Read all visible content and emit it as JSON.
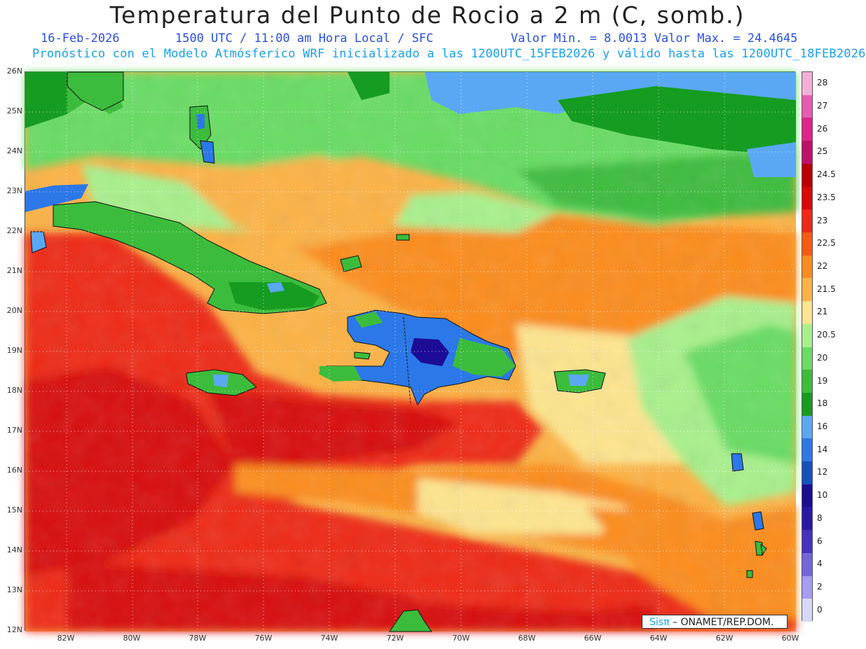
{
  "title": "Temperatura del Punto de Rocio a 2 m (C, somb.)",
  "subtitle": {
    "date": "16-Feb-2026",
    "time": "1500 UTC / 11:00 am Hora Local / SFC",
    "range": "Valor Min. = 8.0013  Valor Max. = 24.4645"
  },
  "description": "Pronóstico con el Modelo Atmósferico WRF inicializado a las 1200UTC_15FEB2026 y válido hasta las  1200UTC_18FEB2026",
  "credit": {
    "brand": "Sisπ",
    "org": "– ONAMET/REP.DOM."
  },
  "lat_labels": [
    "26N",
    "25N",
    "24N",
    "23N",
    "22N",
    "21N",
    "20N",
    "19N",
    "18N",
    "17N",
    "16N",
    "15N",
    "14N",
    "13N",
    "12N"
  ],
  "lon_labels": [
    "82W",
    "80W",
    "78W",
    "76W",
    "74W",
    "72W",
    "70W",
    "68W",
    "66W",
    "64W",
    "62W",
    "60W"
  ],
  "colorbar": [
    {
      "label": "28",
      "color": "#f2b0d8"
    },
    {
      "label": "27",
      "color": "#ea5ab0"
    },
    {
      "label": "26",
      "color": "#e0248c"
    },
    {
      "label": "25",
      "color": "#c0106a"
    },
    {
      "label": "24.5",
      "color": "#b80000"
    },
    {
      "label": "23.5",
      "color": "#d80808"
    },
    {
      "label": "23",
      "color": "#ee2a14"
    },
    {
      "label": "22.5",
      "color": "#f85a10"
    },
    {
      "label": "22",
      "color": "#fc8c1c"
    },
    {
      "label": "21.5",
      "color": "#fcb244"
    },
    {
      "label": "21",
      "color": "#fde48e"
    },
    {
      "label": "20.5",
      "color": "#a8f08c"
    },
    {
      "label": "20",
      "color": "#68dc64"
    },
    {
      "label": "19",
      "color": "#3cbc3c"
    },
    {
      "label": "18",
      "color": "#169c20"
    },
    {
      "label": "16",
      "color": "#5aa8f4"
    },
    {
      "label": "14",
      "color": "#2c78e8"
    },
    {
      "label": "12",
      "color": "#1450c0"
    },
    {
      "label": "10",
      "color": "#1c0c96"
    },
    {
      "label": "8",
      "color": "#2818a8"
    },
    {
      "label": "6",
      "color": "#4632c0"
    },
    {
      "label": "4",
      "color": "#7664dc"
    },
    {
      "label": "2",
      "color": "#a89cf4"
    },
    {
      "label": "0",
      "color": "#d6d8f8"
    }
  ]
}
